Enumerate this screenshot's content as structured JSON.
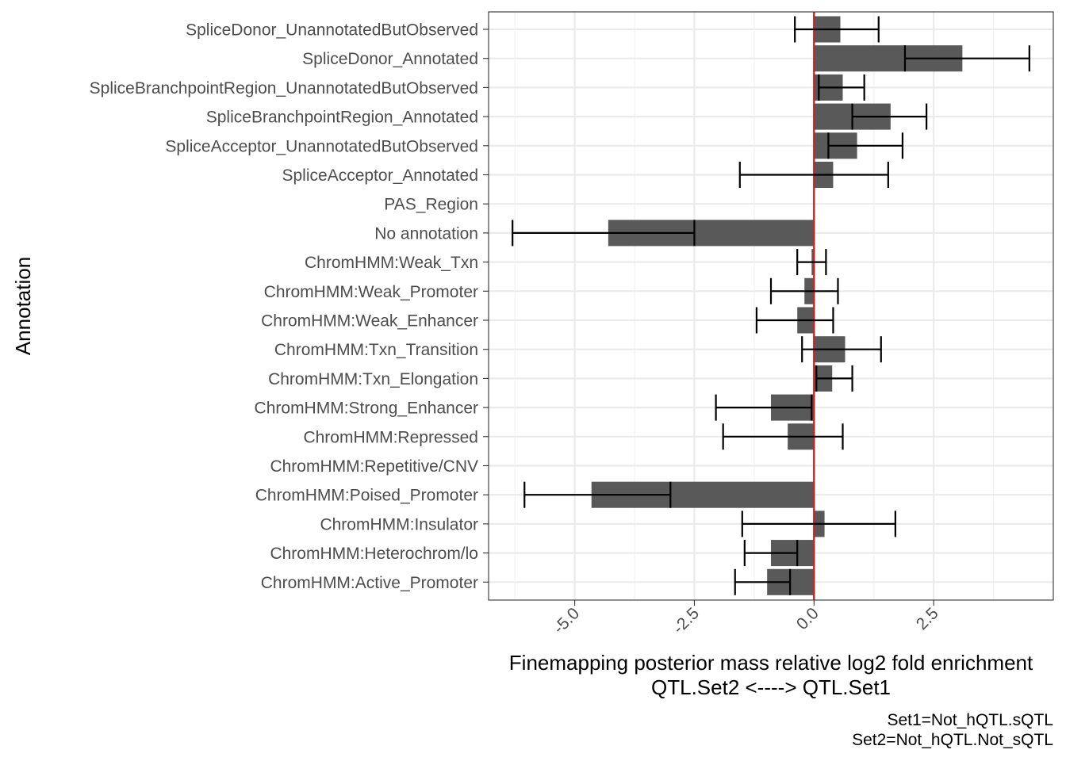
{
  "chart_data": {
    "type": "bar",
    "orientation": "horizontal",
    "xlabel_line1": "Finemapping posterior mass relative log2 fold enrichment",
    "xlabel_line2": "QTL.Set2 <----> QTL.Set1",
    "ylabel": "Annotation",
    "caption_line1": "Set1=Not_hQTL.sQTL",
    "caption_line2": "Set2=Not_hQTL.Not_sQTL",
    "xlim": [
      -6.8,
      5.0
    ],
    "xticks": [
      -5.0,
      -2.5,
      0.0,
      2.5
    ],
    "xtick_labels": [
      "-5.0",
      "-2.5",
      "0.0",
      "2.5"
    ],
    "reference_line": 0,
    "reference_line_color": "#cc2222",
    "bar_color": "#595959",
    "categories": [
      "SpliceDonor_UnannotatedButObserved",
      "SpliceDonor_Annotated",
      "SpliceBranchpointRegion_UnannotatedButObserved",
      "SpliceBranchpointRegion_Annotated",
      "SpliceAcceptor_UnannotatedButObserved",
      "SpliceAcceptor_Annotated",
      "PAS_Region",
      "No annotation",
      "ChromHMM:Weak_Txn",
      "ChromHMM:Weak_Promoter",
      "ChromHMM:Weak_Enhancer",
      "ChromHMM:Txn_Transition",
      "ChromHMM:Txn_Elongation",
      "ChromHMM:Strong_Enhancer",
      "ChromHMM:Repressed",
      "ChromHMM:Repetitive/CNV",
      "ChromHMM:Poised_Promoter",
      "ChromHMM:Insulator",
      "ChromHMM:Heterochrom/lo",
      "ChromHMM:Active_Promoter"
    ],
    "values": [
      0.55,
      3.1,
      0.6,
      1.6,
      0.9,
      0.4,
      null,
      -4.3,
      -0.05,
      -0.2,
      -0.35,
      0.65,
      0.38,
      -0.9,
      -0.55,
      null,
      -4.65,
      0.22,
      -0.9,
      -0.98
    ],
    "err_low": [
      -0.4,
      1.9,
      0.1,
      0.8,
      0.3,
      -1.55,
      null,
      -6.3,
      -0.35,
      -0.9,
      -1.2,
      -0.25,
      0.05,
      -2.05,
      -1.9,
      null,
      -6.05,
      -1.5,
      -1.45,
      -1.65
    ],
    "err_high": [
      1.35,
      4.5,
      1.05,
      2.35,
      1.85,
      1.55,
      null,
      -2.5,
      0.25,
      0.5,
      0.4,
      1.4,
      0.8,
      -0.05,
      0.6,
      null,
      -3.0,
      1.7,
      -0.35,
      -0.5
    ]
  }
}
